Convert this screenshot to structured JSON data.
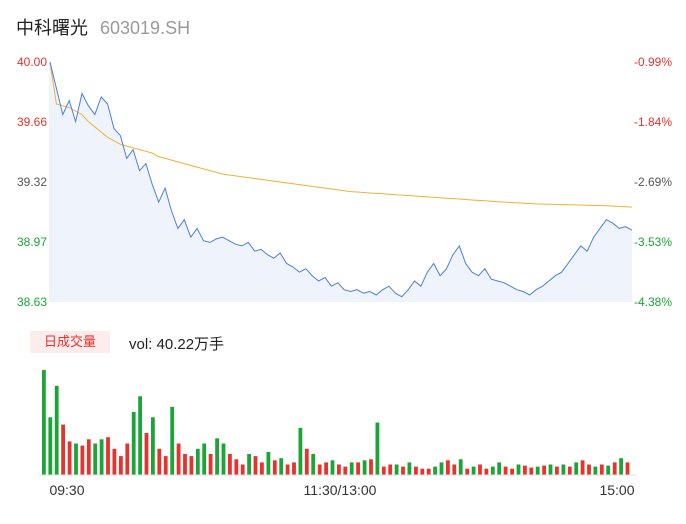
{
  "header": {
    "name": "中科曙光",
    "code": "603019.SH"
  },
  "volume_header": {
    "tag": "日成交量",
    "text": "vol: 40.22万手"
  },
  "colors": {
    "up": "#e8322d",
    "down": "#1ba536",
    "price": "#4a7fe0",
    "avg": "#f0b232",
    "area": "#eef3fc"
  },
  "chart_data": [
    {
      "type": "line",
      "title": "",
      "y_left_ticks": [
        "40.00",
        "39.66",
        "39.32",
        "38.97",
        "38.63"
      ],
      "y_right_ticks": [
        "-0.99%",
        "-1.84%",
        "-2.69%",
        "-3.53%",
        "-4.38%"
      ],
      "ylim": [
        38.63,
        40.0
      ],
      "x_labels": [
        "09:30",
        "11:30/13:00",
        "15:00"
      ],
      "series": [
        {
          "values": [
            40.0,
            39.85,
            39.7,
            39.78,
            39.66,
            39.82,
            39.75,
            39.7,
            39.8,
            39.76,
            39.62,
            39.58,
            39.45,
            39.5,
            39.38,
            39.42,
            39.3,
            39.2,
            39.28,
            39.15,
            39.05,
            39.1,
            39.0,
            39.05,
            38.98,
            38.97,
            38.99,
            39.0,
            38.98,
            38.96,
            38.95,
            38.97,
            38.92,
            38.93,
            38.9,
            38.88,
            38.91,
            38.85,
            38.83,
            38.8,
            38.82,
            38.78,
            38.75,
            38.77,
            38.72,
            38.74,
            38.7,
            38.69,
            38.7,
            38.68,
            38.69,
            38.67,
            38.7,
            38.72,
            38.68,
            38.66,
            38.7,
            38.75,
            38.72,
            38.8,
            38.85,
            38.78,
            38.82,
            38.9,
            38.95,
            38.85,
            38.8,
            38.78,
            38.82,
            38.76,
            38.75,
            38.74,
            38.72,
            38.7,
            38.69,
            38.67,
            38.7,
            38.72,
            38.75,
            38.78,
            38.8,
            38.85,
            38.9,
            38.95,
            38.92,
            39.0,
            39.05,
            39.1,
            39.08,
            39.05,
            39.06,
            39.04
          ]
        },
        {
          "values": [
            40.0,
            39.76,
            39.75,
            39.74,
            39.72,
            39.7,
            39.66,
            39.63,
            39.6,
            39.57,
            39.55,
            39.53,
            39.52,
            39.51,
            39.5,
            39.49,
            39.48,
            39.46,
            39.45,
            39.44,
            39.43,
            39.42,
            39.41,
            39.4,
            39.39,
            39.38,
            39.37,
            39.36,
            39.355,
            39.35,
            39.345,
            39.34,
            39.335,
            39.33,
            39.325,
            39.32,
            39.315,
            39.31,
            39.305,
            39.3,
            39.295,
            39.29,
            39.285,
            39.28,
            39.275,
            39.27,
            39.265,
            39.26,
            39.258,
            39.255,
            39.252,
            39.25,
            39.248,
            39.245,
            39.242,
            39.24,
            39.238,
            39.235,
            39.232,
            39.23,
            39.228,
            39.225,
            39.222,
            39.22,
            39.218,
            39.215,
            39.212,
            39.21,
            39.208,
            39.205,
            39.202,
            39.2,
            39.198,
            39.196,
            39.194,
            39.192,
            39.19,
            39.189,
            39.188,
            39.187,
            39.186,
            39.185,
            39.184,
            39.183,
            39.182,
            39.181,
            39.18,
            39.179,
            39.178,
            39.176,
            39.174,
            39.172
          ]
        }
      ]
    },
    {
      "type": "bar",
      "title": "",
      "values": [
        100,
        55,
        85,
        48,
        32,
        30,
        28,
        34,
        30,
        34,
        36,
        25,
        18,
        30,
        60,
        75,
        40,
        55,
        25,
        18,
        65,
        30,
        20,
        18,
        25,
        30,
        20,
        35,
        30,
        20,
        15,
        10,
        20,
        18,
        12,
        22,
        14,
        16,
        10,
        12,
        45,
        25,
        20,
        10,
        12,
        14,
        10,
        8,
        12,
        12,
        14,
        15,
        50,
        8,
        10,
        10,
        8,
        12,
        8,
        6,
        6,
        8,
        12,
        14,
        10,
        15,
        6,
        8,
        10,
        6,
        8,
        12,
        8,
        6,
        10,
        9,
        7,
        8,
        9,
        10,
        8,
        10,
        8,
        12,
        14,
        10,
        8,
        10,
        9,
        12,
        16,
        12
      ],
      "up": [
        0,
        0,
        0,
        1,
        1,
        0,
        1,
        1,
        0,
        0,
        1,
        1,
        1,
        1,
        0,
        0,
        1,
        0,
        1,
        1,
        0,
        1,
        1,
        1,
        0,
        0,
        1,
        0,
        0,
        1,
        1,
        1,
        0,
        1,
        1,
        0,
        1,
        0,
        1,
        1,
        0,
        1,
        0,
        1,
        1,
        0,
        1,
        1,
        0,
        1,
        0,
        1,
        0,
        1,
        1,
        0,
        1,
        0,
        1,
        1,
        1,
        0,
        0,
        1,
        1,
        0,
        1,
        0,
        1,
        1,
        0,
        0,
        1,
        1,
        0,
        1,
        1,
        0,
        1,
        0,
        1,
        0,
        1,
        0,
        1,
        1,
        0,
        1,
        0,
        1,
        0,
        1
      ]
    }
  ]
}
